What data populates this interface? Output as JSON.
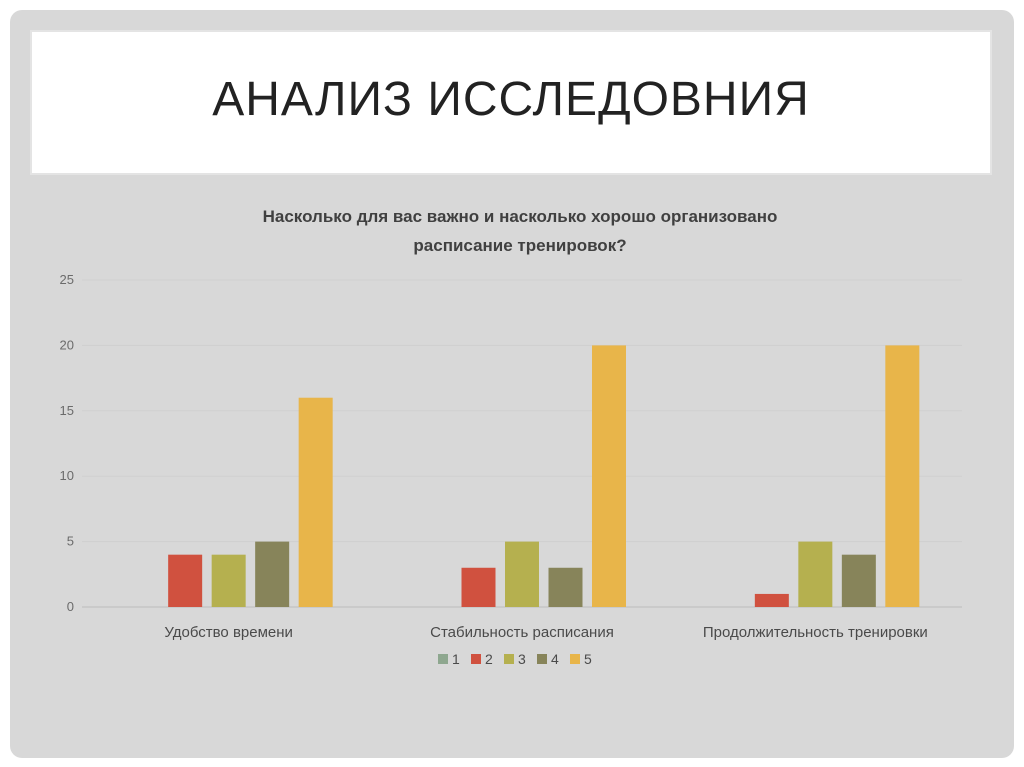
{
  "slide": {
    "title": "АНАЛИЗ ИССЛЕДОВНИЯ"
  },
  "chart_data": {
    "type": "bar",
    "title_line1": "Насколько для вас важно и насколько хорошо организовано",
    "title_line2": "расписание тренировок?",
    "categories": [
      "Удобство времени",
      "Стабильность расписания",
      "Продолжительность тренировки"
    ],
    "series": [
      {
        "name": "1",
        "color": "#8ea78f",
        "values": [
          0,
          0,
          0
        ]
      },
      {
        "name": "2",
        "color": "#d0513f",
        "values": [
          4,
          3,
          1
        ]
      },
      {
        "name": "3",
        "color": "#b5b04f",
        "values": [
          4,
          5,
          5
        ]
      },
      {
        "name": "4",
        "color": "#87845a",
        "values": [
          5,
          3,
          4
        ]
      },
      {
        "name": "5",
        "color": "#e8b54a",
        "values": [
          16,
          20,
          20
        ]
      }
    ],
    "ylim": [
      0,
      25
    ],
    "yticks": [
      0,
      5,
      10,
      15,
      20,
      25
    ],
    "grid": true,
    "legend_position": "bottom"
  }
}
